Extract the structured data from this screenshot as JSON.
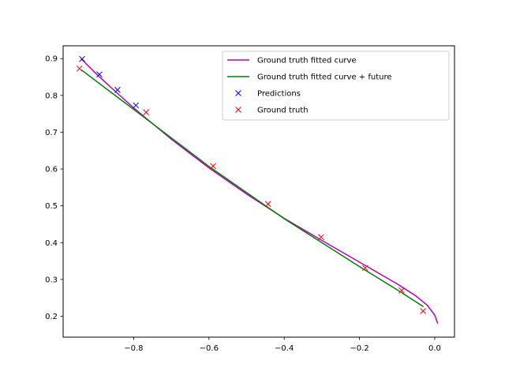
{
  "chart_data": {
    "type": "line",
    "title": "",
    "xlabel": "",
    "ylabel": "",
    "xlim": [
      -0.9875,
      0.0525
    ],
    "ylim": [
      0.1432,
      0.9348
    ],
    "x_ticks": [
      -0.8,
      -0.6,
      -0.4,
      -0.2,
      0.0
    ],
    "x_tick_labels": [
      "−0.8",
      "−0.6",
      "−0.4",
      "−0.2",
      "0.0"
    ],
    "y_ticks": [
      0.2,
      0.3,
      0.4,
      0.5,
      0.6,
      0.7,
      0.8,
      0.9
    ],
    "y_tick_labels": [
      "0.2",
      "0.3",
      "0.4",
      "0.5",
      "0.6",
      "0.7",
      "0.8",
      "0.9"
    ],
    "grid": false,
    "legend_position": "upper right",
    "series": [
      {
        "name": "Ground truth fitted curve",
        "kind": "line",
        "color": "#bf00bf",
        "x": [
          -0.94,
          -0.9,
          -0.85,
          -0.8,
          -0.7,
          -0.6,
          -0.5,
          -0.4,
          -0.3,
          -0.2,
          -0.1,
          -0.05,
          -0.02,
          0.0,
          0.008
        ],
        "y": [
          0.9,
          0.859,
          0.812,
          0.766,
          0.681,
          0.603,
          0.532,
          0.466,
          0.406,
          0.347,
          0.288,
          0.255,
          0.23,
          0.203,
          0.18
        ]
      },
      {
        "name": "Ground truth fitted curve + future",
        "kind": "line",
        "color": "#008000",
        "x": [
          -0.94,
          -0.8,
          -0.6,
          -0.4,
          -0.2,
          -0.1,
          -0.03
        ],
        "y": [
          0.87,
          0.762,
          0.607,
          0.465,
          0.335,
          0.272,
          0.226
        ]
      },
      {
        "name": "Predictions",
        "kind": "marker",
        "marker": "x",
        "color": "#0000ff",
        "x": [
          -0.937,
          -0.891,
          -0.843,
          -0.794
        ],
        "y": [
          0.899,
          0.857,
          0.815,
          0.773
        ]
      },
      {
        "name": "Ground truth",
        "kind": "marker",
        "marker": "x",
        "color": "#ff0000",
        "x": [
          -0.944,
          -0.767,
          -0.589,
          -0.443,
          -0.302,
          -0.185,
          -0.088,
          -0.031
        ],
        "y": [
          0.873,
          0.754,
          0.608,
          0.505,
          0.415,
          0.331,
          0.27,
          0.214
        ]
      }
    ]
  }
}
